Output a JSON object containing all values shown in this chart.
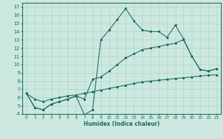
{
  "xlabel": "Humidex (Indice chaleur)",
  "bg_color": "#cde8e0",
  "line_color": "#1a6b5a",
  "grid_color": "#b0d8cc",
  "xlim": [
    -0.5,
    23.5
  ],
  "ylim": [
    4,
    17.5
  ],
  "xticks": [
    0,
    1,
    2,
    3,
    4,
    5,
    6,
    7,
    8,
    9,
    10,
    11,
    12,
    13,
    14,
    15,
    16,
    17,
    18,
    19,
    20,
    21,
    22,
    23
  ],
  "yticks": [
    4,
    5,
    6,
    7,
    8,
    9,
    10,
    11,
    12,
    13,
    14,
    15,
    16,
    17
  ],
  "series1_x": [
    0,
    1,
    2,
    3,
    4,
    5,
    6,
    7,
    8,
    9,
    10,
    11,
    12,
    13,
    14,
    15,
    16,
    17,
    18,
    19,
    20,
    21,
    22,
    23
  ],
  "series1_y": [
    6.5,
    4.8,
    4.5,
    5.2,
    5.5,
    5.8,
    6.2,
    3.9,
    4.5,
    13.0,
    14.2,
    15.5,
    16.8,
    15.3,
    14.2,
    14.0,
    14.0,
    13.3,
    14.8,
    13.1,
    11.0,
    9.4,
    9.2,
    9.5
  ],
  "series2_x": [
    0,
    1,
    2,
    3,
    4,
    5,
    6,
    7,
    8,
    9,
    10,
    11,
    12,
    13,
    14,
    15,
    16,
    17,
    18,
    19,
    20,
    21,
    22,
    23
  ],
  "series2_y": [
    6.5,
    4.8,
    4.5,
    5.2,
    5.5,
    5.8,
    6.2,
    5.8,
    8.2,
    8.5,
    9.2,
    10.0,
    10.8,
    11.3,
    11.8,
    12.0,
    12.2,
    12.4,
    12.6,
    13.0,
    11.0,
    9.4,
    9.2,
    9.5
  ],
  "series3_x": [
    0,
    1,
    2,
    3,
    4,
    5,
    6,
    7,
    8,
    9,
    10,
    11,
    12,
    13,
    14,
    15,
    16,
    17,
    18,
    19,
    20,
    21,
    22,
    23
  ],
  "series3_y": [
    6.5,
    5.8,
    5.5,
    5.8,
    6.0,
    6.2,
    6.3,
    6.5,
    6.7,
    6.9,
    7.1,
    7.3,
    7.5,
    7.7,
    7.9,
    8.0,
    8.1,
    8.2,
    8.3,
    8.4,
    8.5,
    8.6,
    8.7,
    8.75
  ]
}
